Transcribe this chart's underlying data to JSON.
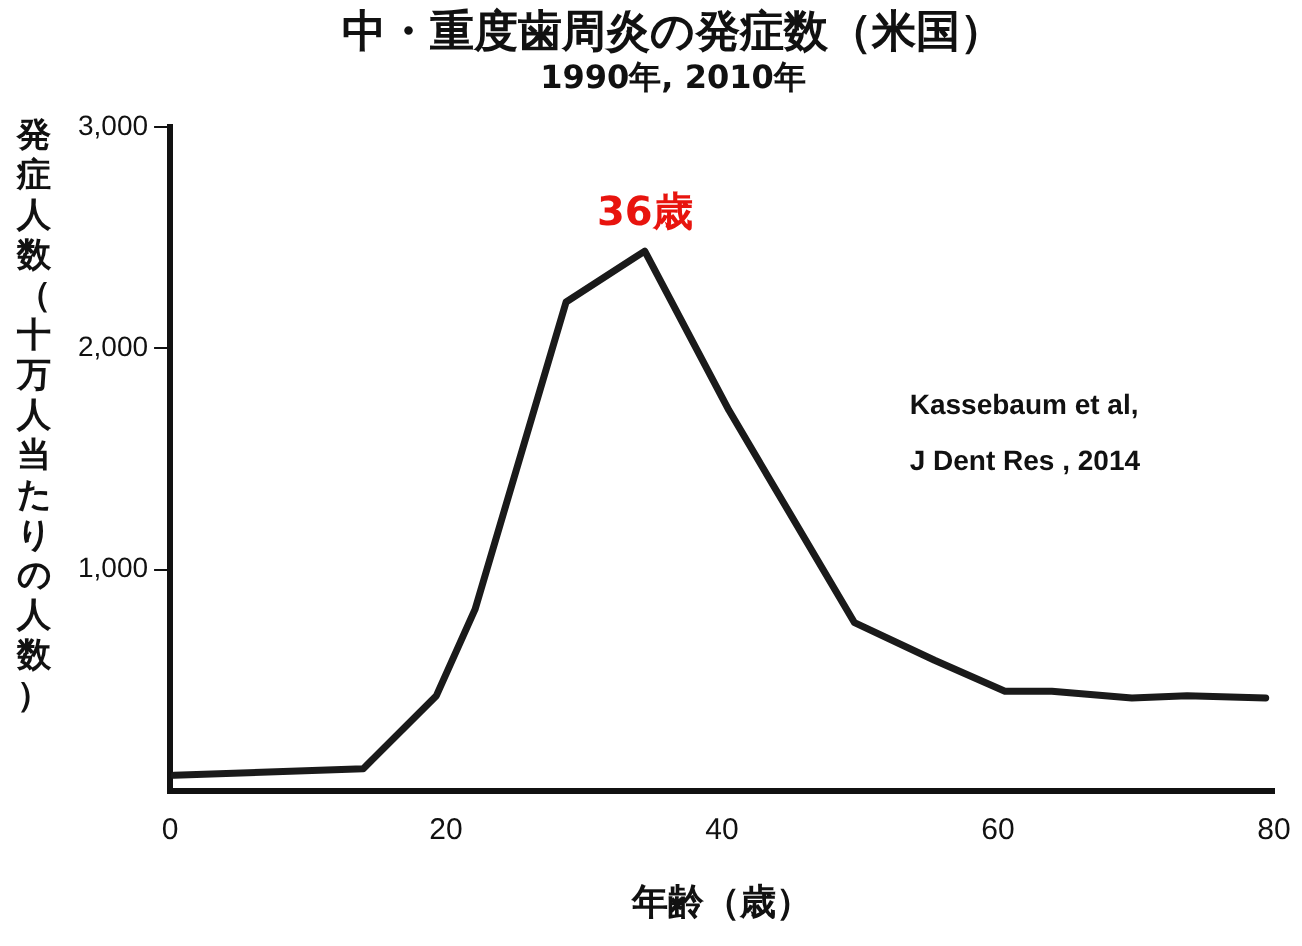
{
  "chart_data": {
    "type": "line",
    "title": "中・重度歯周炎の発症数（米国）",
    "subtitle": "1990年, 2010年",
    "xlabel": "年齢（歳）",
    "ylabel": "発症人数（十万人当たりの人数）",
    "series": [
      {
        "color": "#1a1a1a",
        "x": [
          0.3,
          14,
          19.3,
          22.1,
          28.7,
          34.4,
          40.5,
          49.6,
          55.4,
          60.5,
          63.9,
          69.7,
          73.7,
          79.4
        ],
        "values": [
          70,
          100,
          430,
          820,
          2210,
          2440,
          1720,
          760,
          590,
          450,
          450,
          420,
          430,
          420
        ]
      }
    ],
    "xlim": [
      0,
      80
    ],
    "xticks": [
      0,
      20,
      40,
      60,
      80
    ],
    "ylim": [
      0,
      3000
    ],
    "yticks": [
      {
        "value": 1000,
        "label": "1,000"
      },
      {
        "value": 2000,
        "label": "2,000"
      },
      {
        "value": 3000,
        "label": "3,000"
      }
    ],
    "grid": false,
    "legend": false,
    "marker": "none",
    "line_style": "solid",
    "annotations": [
      {
        "text": "36歳",
        "x": 34.4,
        "y": 2440
      },
      "Kassebaum et al,\nJ Dent Res , 2014"
    ]
  }
}
